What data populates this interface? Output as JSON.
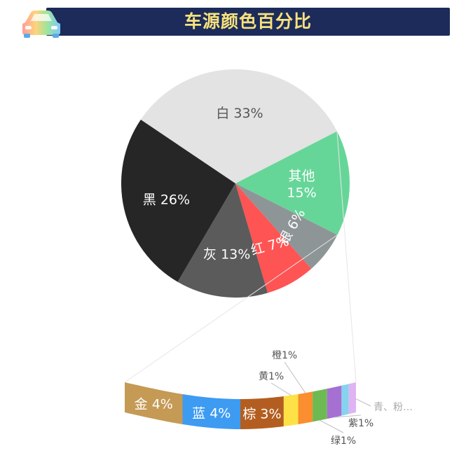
{
  "header": {
    "title": "车源颜色百分比",
    "icon": "car-icon"
  },
  "chart_data": [
    {
      "type": "pie",
      "slices": [
        {
          "label": "白",
          "value": 33,
          "value_label": "33%",
          "color": "#e3e3e3",
          "text_color": "#555555"
        },
        {
          "label": "其他",
          "value": 15,
          "value_label": "15%",
          "color": "#66d698",
          "text_color": "#ffffff"
        },
        {
          "label": "银",
          "value": 6,
          "value_label": "6%",
          "color": "#8e9597",
          "text_color": "#ffffff"
        },
        {
          "label": "红",
          "value": 7,
          "value_label": "7%",
          "color": "#ff5454",
          "text_color": "#ffffff"
        },
        {
          "label": "灰",
          "value": 13,
          "value_label": "13%",
          "color": "#5b5b5b",
          "text_color": "#ffffff"
        },
        {
          "label": "黑",
          "value": 26,
          "value_label": "26%",
          "color": "#262626",
          "text_color": "#ffffff"
        }
      ]
    },
    {
      "type": "bar",
      "breakdown_of": "其他",
      "segments": [
        {
          "label": "金",
          "value": 4,
          "value_label": "4%",
          "color": "#c59a55"
        },
        {
          "label": "蓝",
          "value": 4,
          "value_label": "4%",
          "color": "#3d9bf2"
        },
        {
          "label": "棕",
          "value": 3,
          "value_label": "3%",
          "color": "#b35e20"
        },
        {
          "label": "黄",
          "value": 1,
          "value_label": "1%",
          "color": "#fde146"
        },
        {
          "label": "橙",
          "value": 1,
          "value_label": "1%",
          "color": "#fb8e2e"
        },
        {
          "label": "绿",
          "value": 1,
          "value_label": "1%",
          "color": "#6db952"
        },
        {
          "label": "紫",
          "value": 1,
          "value_label": "1%",
          "color": "#a66fd2"
        },
        {
          "label": "青",
          "value": 0.5,
          "value_label": "",
          "color": "#85d3ef"
        },
        {
          "label": "粉",
          "value": 0.5,
          "value_label": "",
          "color": "#e0b3f2"
        }
      ],
      "callouts": [
        "黄1%",
        "橙1%",
        "绿1%",
        "紫1%",
        "青、粉…"
      ]
    }
  ]
}
